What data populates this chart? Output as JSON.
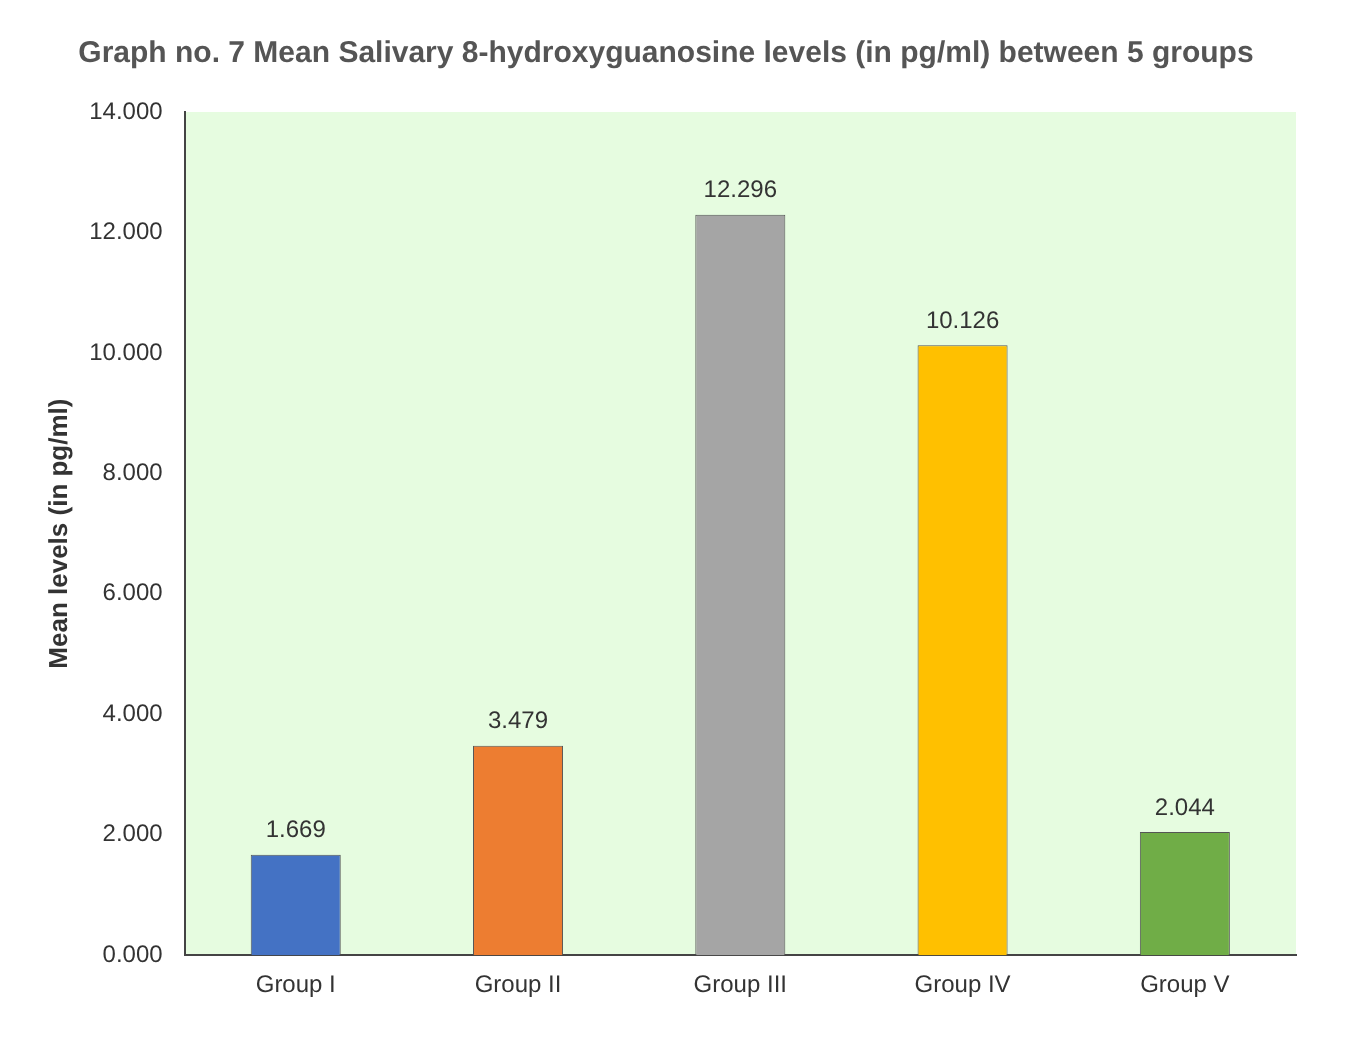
{
  "chart_data": {
    "type": "bar",
    "title": "Graph no. 7 Mean Salivary 8-hydroxyguanosine levels (in pg/ml) between 5 groups",
    "ylabel": "Mean levels (in pg/ml)",
    "categories": [
      "Group I",
      "Group II",
      "Group III",
      "Group IV",
      "Group V"
    ],
    "values": [
      1.669,
      3.479,
      12.296,
      10.126,
      2.044
    ],
    "colors": [
      "#4472c4",
      "#ed7d31",
      "#a5a5a5",
      "#ffc000",
      "#70ad47"
    ],
    "ylim": [
      0,
      14
    ],
    "yticks": [
      {
        "value": 0,
        "label": "0.000"
      },
      {
        "value": 2,
        "label": "2.000"
      },
      {
        "value": 4,
        "label": "4.000"
      },
      {
        "value": 6,
        "label": "6.000"
      },
      {
        "value": 8,
        "label": "8.000"
      },
      {
        "value": 10,
        "label": "10.000"
      },
      {
        "value": 12,
        "label": "12.000"
      },
      {
        "value": 14,
        "label": "14.000"
      }
    ],
    "grid": false,
    "legend": false,
    "data_labels": true
  }
}
